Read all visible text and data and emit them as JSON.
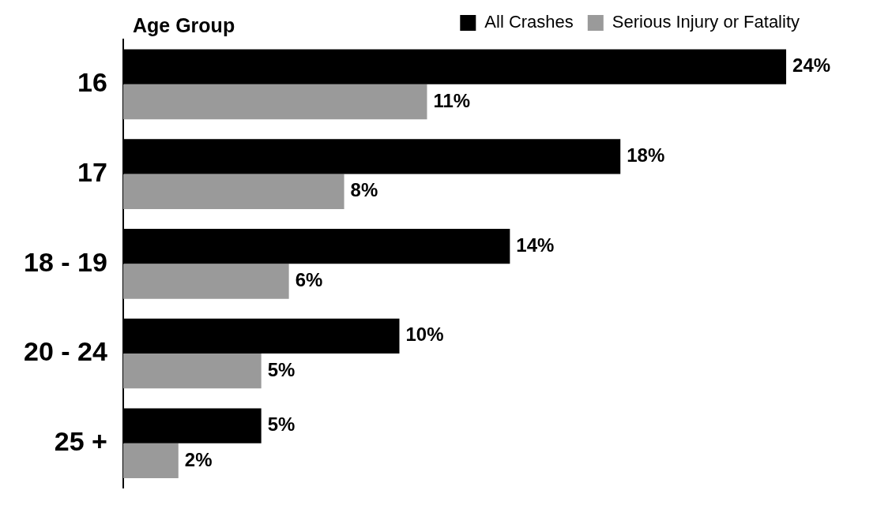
{
  "chart_data": {
    "type": "bar",
    "orientation": "horizontal",
    "ylabel": "Age Group",
    "categories": [
      "16",
      "17",
      "18 - 19",
      "20 - 24",
      "25 +"
    ],
    "series": [
      {
        "name": "All Crashes",
        "color": "#000000",
        "values": [
          24,
          18,
          14,
          10,
          5
        ],
        "value_labels": [
          "24%",
          "18%",
          "14%",
          "10%",
          "5%"
        ]
      },
      {
        "name": "Serious Injury or Fatality",
        "color": "#9a9a9a",
        "values": [
          11,
          8,
          6,
          5,
          2
        ],
        "value_labels": [
          "11%",
          "8%",
          "6%",
          "5%",
          "2%"
        ]
      }
    ],
    "legend": "top right",
    "tick_labels": "y"
  }
}
